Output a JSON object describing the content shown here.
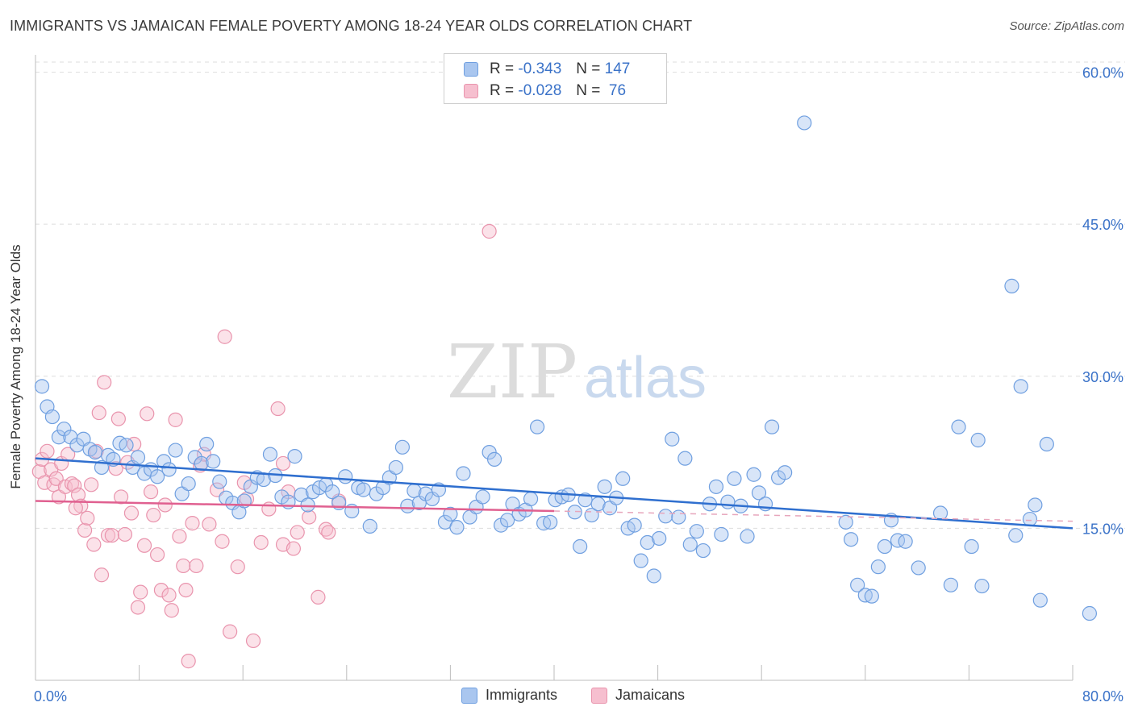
{
  "title": "IMMIGRANTS VS JAMAICAN FEMALE POVERTY AMONG 18-24 YEAR OLDS CORRELATION CHART",
  "source": "Source: ZipAtlas.com",
  "watermark": {
    "zip": "ZIP",
    "atlas": "atlas"
  },
  "legend_stats": {
    "rows": [
      {
        "r_label": "R =",
        "r_value": "-0.343",
        "n_label": "N =",
        "n_value": "147",
        "color": "#a9c6ef",
        "border": "#6f9fe0"
      },
      {
        "r_label": "R =",
        "r_value": "-0.028",
        "n_label": "N =",
        "n_value": " 76",
        "color": "#f6bfcf",
        "border": "#e994ad"
      }
    ]
  },
  "bottom_legend": [
    {
      "label": "Immigrants",
      "color": "#a9c6ef",
      "border": "#6f9fe0"
    },
    {
      "label": "Jamaicans",
      "color": "#f6bfcf",
      "border": "#e994ad"
    }
  ],
  "chart_data": {
    "type": "scatter",
    "title": "IMMIGRANTS VS JAMAICAN FEMALE POVERTY AMONG 18-24 YEAR OLDS CORRELATION CHART",
    "xlabel": "",
    "ylabel": "Female Poverty Among 18-24 Year Olds",
    "xlim": [
      0,
      80
    ],
    "ylim": [
      0,
      61
    ],
    "x_tick_labels": [
      "0.0%",
      "80.0%"
    ],
    "y_ticks": [
      15,
      30,
      45,
      60
    ],
    "y_tick_labels": [
      "15.0%",
      "30.0%",
      "45.0%",
      "60.0%"
    ],
    "grid": true,
    "series": [
      {
        "name": "Immigrants",
        "color": "#6f9fe0",
        "fill": "rgba(169,198,239,0.45)",
        "trend": {
          "x": [
            0,
            80
          ],
          "y": [
            21.9,
            15.0
          ],
          "color": "#2f6fcf"
        },
        "points": [
          [
            0.5,
            29
          ],
          [
            0.9,
            27
          ],
          [
            1.3,
            26
          ],
          [
            1.8,
            24
          ],
          [
            2.2,
            24.8
          ],
          [
            2.7,
            24
          ],
          [
            3.2,
            23.2
          ],
          [
            3.7,
            23.8
          ],
          [
            4.2,
            22.8
          ],
          [
            4.6,
            22.5
          ],
          [
            5.1,
            21
          ],
          [
            5.6,
            22.2
          ],
          [
            6,
            21.8
          ],
          [
            6.5,
            23.4
          ],
          [
            7,
            23.2
          ],
          [
            7.5,
            21
          ],
          [
            7.9,
            22
          ],
          [
            8.4,
            20.4
          ],
          [
            8.9,
            20.8
          ],
          [
            9.4,
            20.1
          ],
          [
            9.9,
            21.6
          ],
          [
            10.3,
            20.8
          ],
          [
            10.8,
            22.7
          ],
          [
            11.3,
            18.4
          ],
          [
            11.8,
            19.4
          ],
          [
            12.3,
            22
          ],
          [
            12.8,
            21.4
          ],
          [
            13.2,
            23.3
          ],
          [
            13.7,
            21.6
          ],
          [
            14.2,
            19.6
          ],
          [
            14.7,
            18
          ],
          [
            15.2,
            17.5
          ],
          [
            15.7,
            16.6
          ],
          [
            16.1,
            17.7
          ],
          [
            16.6,
            19.1
          ],
          [
            17.1,
            20
          ],
          [
            17.6,
            19.8
          ],
          [
            18.1,
            22.3
          ],
          [
            18.5,
            20.2
          ],
          [
            19,
            18.1
          ],
          [
            19.5,
            17.6
          ],
          [
            20,
            22.1
          ],
          [
            20.5,
            18.3
          ],
          [
            21,
            17.3
          ],
          [
            21.4,
            18.6
          ],
          [
            21.9,
            19
          ],
          [
            22.4,
            19.3
          ],
          [
            22.9,
            18.6
          ],
          [
            23.4,
            17.5
          ],
          [
            23.9,
            20.1
          ],
          [
            24.4,
            16.7
          ],
          [
            24.9,
            19
          ],
          [
            25.3,
            18.8
          ],
          [
            25.8,
            15.2
          ],
          [
            26.3,
            18.4
          ],
          [
            26.8,
            19
          ],
          [
            27.3,
            20
          ],
          [
            27.8,
            21
          ],
          [
            28.3,
            23
          ],
          [
            28.7,
            17.2
          ],
          [
            29.2,
            18.7
          ],
          [
            29.6,
            17.5
          ],
          [
            30.1,
            18.4
          ],
          [
            30.6,
            17.9
          ],
          [
            31.1,
            18.8
          ],
          [
            31.6,
            15.6
          ],
          [
            32,
            16.4
          ],
          [
            32.5,
            15.1
          ],
          [
            33,
            20.4
          ],
          [
            33.5,
            16.1
          ],
          [
            34,
            17.1
          ],
          [
            34.5,
            18.1
          ],
          [
            35,
            22.5
          ],
          [
            35.4,
            21.8
          ],
          [
            35.9,
            15.3
          ],
          [
            36.4,
            15.8
          ],
          [
            36.8,
            17.4
          ],
          [
            37.3,
            16.4
          ],
          [
            37.8,
            16.8
          ],
          [
            38.2,
            17.9
          ],
          [
            38.7,
            25
          ],
          [
            39.2,
            15.5
          ],
          [
            39.7,
            15.6
          ],
          [
            40.1,
            17.8
          ],
          [
            40.6,
            18.1
          ],
          [
            41.1,
            18.3
          ],
          [
            41.6,
            16.6
          ],
          [
            42,
            13.2
          ],
          [
            42.4,
            17.8
          ],
          [
            42.9,
            16.3
          ],
          [
            43.4,
            17.4
          ],
          [
            43.9,
            19.1
          ],
          [
            44.3,
            17
          ],
          [
            44.8,
            18
          ],
          [
            45.3,
            19.9
          ],
          [
            45.7,
            15
          ],
          [
            46.2,
            15.3
          ],
          [
            46.7,
            11.8
          ],
          [
            47.2,
            13.6
          ],
          [
            47.7,
            10.3
          ],
          [
            48.1,
            14
          ],
          [
            48.6,
            16.2
          ],
          [
            49.1,
            23.8
          ],
          [
            49.6,
            16.1
          ],
          [
            50.1,
            21.9
          ],
          [
            50.5,
            13.4
          ],
          [
            51,
            14.7
          ],
          [
            51.5,
            12.8
          ],
          [
            52,
            17.4
          ],
          [
            52.5,
            19.1
          ],
          [
            52.9,
            14.4
          ],
          [
            53.4,
            17.6
          ],
          [
            53.9,
            19.9
          ],
          [
            54.4,
            17.2
          ],
          [
            54.9,
            14.2
          ],
          [
            55.4,
            20.3
          ],
          [
            55.8,
            18.5
          ],
          [
            56.3,
            17.4
          ],
          [
            56.8,
            25
          ],
          [
            57.3,
            20
          ],
          [
            57.8,
            20.5
          ],
          [
            59.3,
            55
          ],
          [
            62.5,
            15.6
          ],
          [
            62.9,
            13.9
          ],
          [
            63.4,
            9.4
          ],
          [
            64,
            8.4
          ],
          [
            64.5,
            8.3
          ],
          [
            65,
            11.2
          ],
          [
            65.5,
            13.2
          ],
          [
            66,
            15.8
          ],
          [
            66.5,
            13.8
          ],
          [
            67.1,
            13.7
          ],
          [
            68.1,
            11.1
          ],
          [
            69.8,
            16.5
          ],
          [
            70.6,
            9.4
          ],
          [
            71.2,
            25
          ],
          [
            72.2,
            13.2
          ],
          [
            72.7,
            23.7
          ],
          [
            73,
            9.3
          ],
          [
            75.3,
            38.9
          ],
          [
            75.6,
            14.3
          ],
          [
            76,
            29
          ],
          [
            76.7,
            15.9
          ],
          [
            77.1,
            17.3
          ],
          [
            77.5,
            7.9
          ],
          [
            78,
            23.3
          ],
          [
            81.3,
            6.6
          ]
        ]
      },
      {
        "name": "Jamaicans",
        "color": "#e994ad",
        "fill": "rgba(246,191,207,0.45)",
        "trend": {
          "x": [
            0,
            40
          ],
          "y": [
            17.7,
            16.7
          ],
          "color": "#e06090"
        },
        "trend_dash": {
          "x": [
            40,
            80
          ],
          "y": [
            16.7,
            15.7
          ]
        },
        "points": [
          [
            0.3,
            20.6
          ],
          [
            0.5,
            21.8
          ],
          [
            0.7,
            19.5
          ],
          [
            0.9,
            22.6
          ],
          [
            1.2,
            20.8
          ],
          [
            1.4,
            19.3
          ],
          [
            1.6,
            19.9
          ],
          [
            1.8,
            18.1
          ],
          [
            2,
            21.4
          ],
          [
            2.3,
            19.1
          ],
          [
            2.5,
            22.3
          ],
          [
            2.8,
            19.4
          ],
          [
            3,
            19.2
          ],
          [
            3.3,
            18.3
          ],
          [
            3.5,
            17.2
          ],
          [
            3.8,
            14.8
          ],
          [
            4,
            16
          ],
          [
            4.3,
            19.3
          ],
          [
            4.5,
            13.4
          ],
          [
            4.7,
            22.6
          ],
          [
            4.9,
            26.4
          ],
          [
            5.1,
            10.4
          ],
          [
            5.3,
            29.4
          ],
          [
            5.6,
            14.3
          ],
          [
            5.9,
            14.3
          ],
          [
            6.2,
            20.9
          ],
          [
            6.4,
            25.8
          ],
          [
            6.6,
            18.1
          ],
          [
            6.9,
            14.4
          ],
          [
            7.1,
            21.5
          ],
          [
            7.4,
            16.5
          ],
          [
            7.6,
            23.3
          ],
          [
            7.9,
            7.2
          ],
          [
            8.1,
            8.7
          ],
          [
            8.4,
            13.3
          ],
          [
            8.6,
            26.3
          ],
          [
            8.9,
            18.6
          ],
          [
            9.1,
            16.3
          ],
          [
            9.4,
            12.4
          ],
          [
            9.7,
            8.9
          ],
          [
            10,
            17.3
          ],
          [
            10.3,
            8.4
          ],
          [
            10.5,
            6.9
          ],
          [
            10.8,
            25.7
          ],
          [
            11.1,
            14.2
          ],
          [
            11.4,
            11.3
          ],
          [
            11.6,
            8.9
          ],
          [
            11.8,
            1.9
          ],
          [
            12.1,
            15.5
          ],
          [
            12.4,
            11.3
          ],
          [
            12.7,
            21.2
          ],
          [
            13,
            22.3
          ],
          [
            13.4,
            15.4
          ],
          [
            14,
            18.8
          ],
          [
            14.4,
            13.7
          ],
          [
            14.6,
            33.9
          ],
          [
            15,
            4.8
          ],
          [
            15.6,
            11.2
          ],
          [
            16.1,
            19.5
          ],
          [
            16.8,
            3.9
          ],
          [
            17.4,
            13.6
          ],
          [
            18,
            16.9
          ],
          [
            18.7,
            26.8
          ],
          [
            19.1,
            13.4
          ],
          [
            19.5,
            18.6
          ],
          [
            19.9,
            13
          ],
          [
            20.2,
            14.6
          ],
          [
            21.1,
            16.1
          ],
          [
            21.8,
            8.2
          ],
          [
            22.4,
            14.9
          ],
          [
            22.6,
            14.6
          ],
          [
            23.4,
            17.7
          ],
          [
            35,
            44.3
          ],
          [
            19.1,
            21.4
          ],
          [
            16.3,
            17.9
          ],
          [
            3.1,
            17
          ]
        ]
      }
    ]
  }
}
